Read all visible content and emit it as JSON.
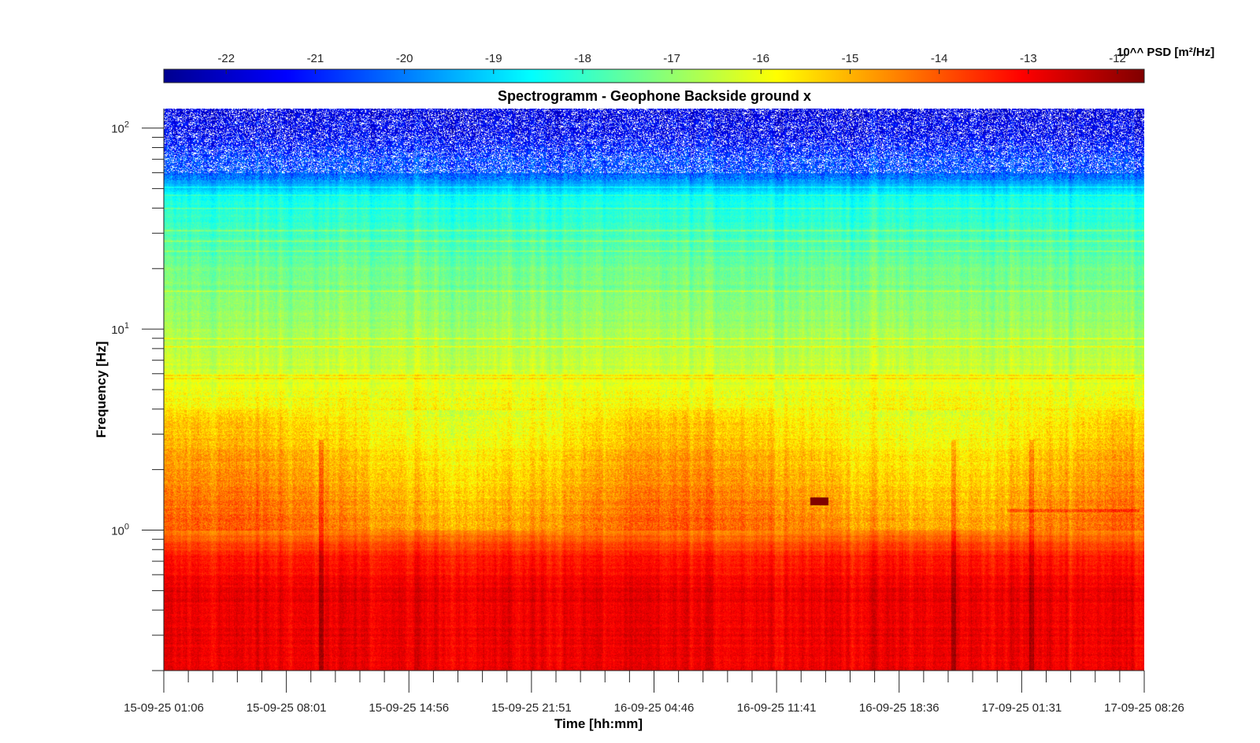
{
  "chart_data": {
    "type": "heatmap",
    "title": "Spectrogramm - Geophone Backside ground x",
    "xlabel": "Time [hh:mm]",
    "ylabel": "Frequency [Hz]",
    "x_tick_labels": [
      "15-09-25 01:06",
      "15-09-25 08:01",
      "15-09-25 14:56",
      "15-09-25 21:51",
      "16-09-25 04:46",
      "16-09-25 11:41",
      "16-09-25 18:36",
      "17-09-25 01:31",
      "17-09-25 08:26"
    ],
    "y_scale": "log",
    "y_tick_labels": [
      {
        "base": "10",
        "exp": "0",
        "value": 1
      },
      {
        "base": "10",
        "exp": "1",
        "value": 10
      },
      {
        "base": "10",
        "exp": "2",
        "value": 100
      }
    ],
    "ylim": [
      0.2,
      125
    ],
    "colorbar": {
      "label": "10^^ PSD [m²/Hz]",
      "ticks": [
        "-22",
        "-21",
        "-20",
        "-19",
        "-18",
        "-17",
        "-16",
        "-15",
        "-14",
        "-13",
        "-12"
      ],
      "range": [
        -22.7,
        -11.7
      ],
      "colormap": "jet",
      "position": "top"
    },
    "features": [
      {
        "desc": "high PSD band",
        "freq_range_hz": [
          0.2,
          0.8
        ],
        "log10_psd": -12.8
      },
      {
        "desc": "medium band",
        "freq_range_hz": [
          1,
          4
        ],
        "log10_psd": -15.0
      },
      {
        "desc": "line",
        "freq_hz": 5.7,
        "log10_psd": -15.8
      },
      {
        "desc": "low PSD region",
        "freq_range_hz": [
          60,
          125
        ],
        "log10_psd": -21.5
      },
      {
        "desc": "burst",
        "time": "16-09-25 14:30",
        "freq_hz": 1.4,
        "log10_psd": -11.9
      }
    ]
  }
}
